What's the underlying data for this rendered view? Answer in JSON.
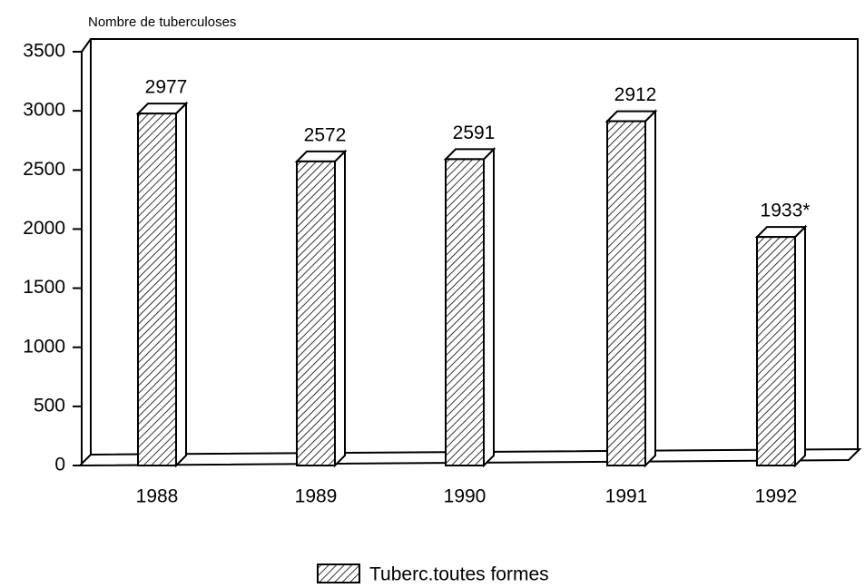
{
  "chart_data": {
    "type": "bar",
    "y_axis_label": "Nombre de tuberculoses",
    "categories": [
      "1988",
      "1989",
      "1990",
      "1991",
      "1992"
    ],
    "series": [
      {
        "name": "Tuberc.toutes formes",
        "color": "#000000",
        "values": [
          2977,
          2572,
          2591,
          2912,
          1933
        ],
        "value_labels": [
          "2977",
          "2572",
          "2591",
          "2912",
          "1933*"
        ]
      }
    ],
    "ylim": [
      0,
      3500
    ],
    "yticks": [
      0,
      500,
      1000,
      1500,
      2000,
      2500,
      3000,
      3500
    ],
    "legend": "bottom"
  }
}
